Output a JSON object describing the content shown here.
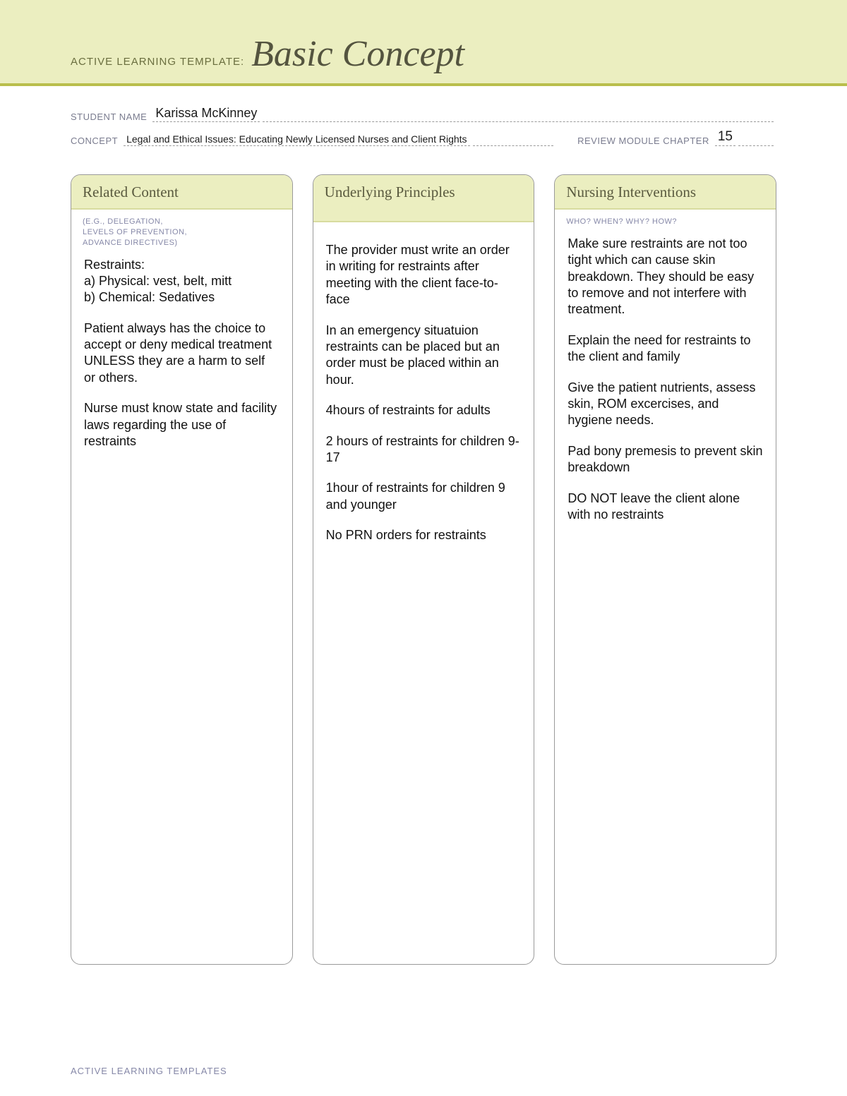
{
  "banner": {
    "label": "ACTIVE LEARNING TEMPLATE:",
    "title": "Basic Concept"
  },
  "meta": {
    "student_label": "STUDENT NAME",
    "student_value": "Karissa McKinney",
    "concept_label": "CONCEPT",
    "concept_value": "Legal and Ethical Issues: Educating Newly Licensed Nurses and Client Rights",
    "chapter_label": "REVIEW MODULE CHAPTER",
    "chapter_value": "15"
  },
  "columns": [
    {
      "title": "Related Content",
      "subtitle": "(E.G., DELEGATION,\nLEVELS OF PREVENTION,\nADVANCE DIRECTIVES)",
      "paragraphs": [
        "Restraints:\na) Physical: vest, belt, mitt\nb) Chemical: Sedatives",
        "Patient always has the choice to accept or deny medical treatment UNLESS they are a harm to self or others.",
        "Nurse must know state and facility laws regarding the use of restraints"
      ]
    },
    {
      "title": "Underlying Principles",
      "subtitle": "",
      "paragraphs": [
        "The provider must write an order in writing for restraints after meeting with the client face-to-face",
        "In an emergency situatuion restraints can be placed but an order must be placed within an hour.",
        "4hours of restraints for adults",
        "2 hours of restraints for children 9-17",
        "1hour of restraints for children 9 and younger",
        "No PRN orders for restraints"
      ]
    },
    {
      "title": "Nursing Interventions",
      "subtitle": "WHO? WHEN? WHY? HOW?",
      "paragraphs": [
        "Make sure restraints are not too tight which can cause skin breakdown. They should be easy to remove and not interfere with treatment.",
        "Explain the need for restraints to the client and family",
        "Give the patient nutrients, assess skin, ROM excercises, and hygiene needs.",
        "Pad bony premesis to prevent skin breakdown",
        "DO NOT leave the client alone with no restraints"
      ]
    }
  ],
  "footer": "ACTIVE LEARNING TEMPLATES"
}
